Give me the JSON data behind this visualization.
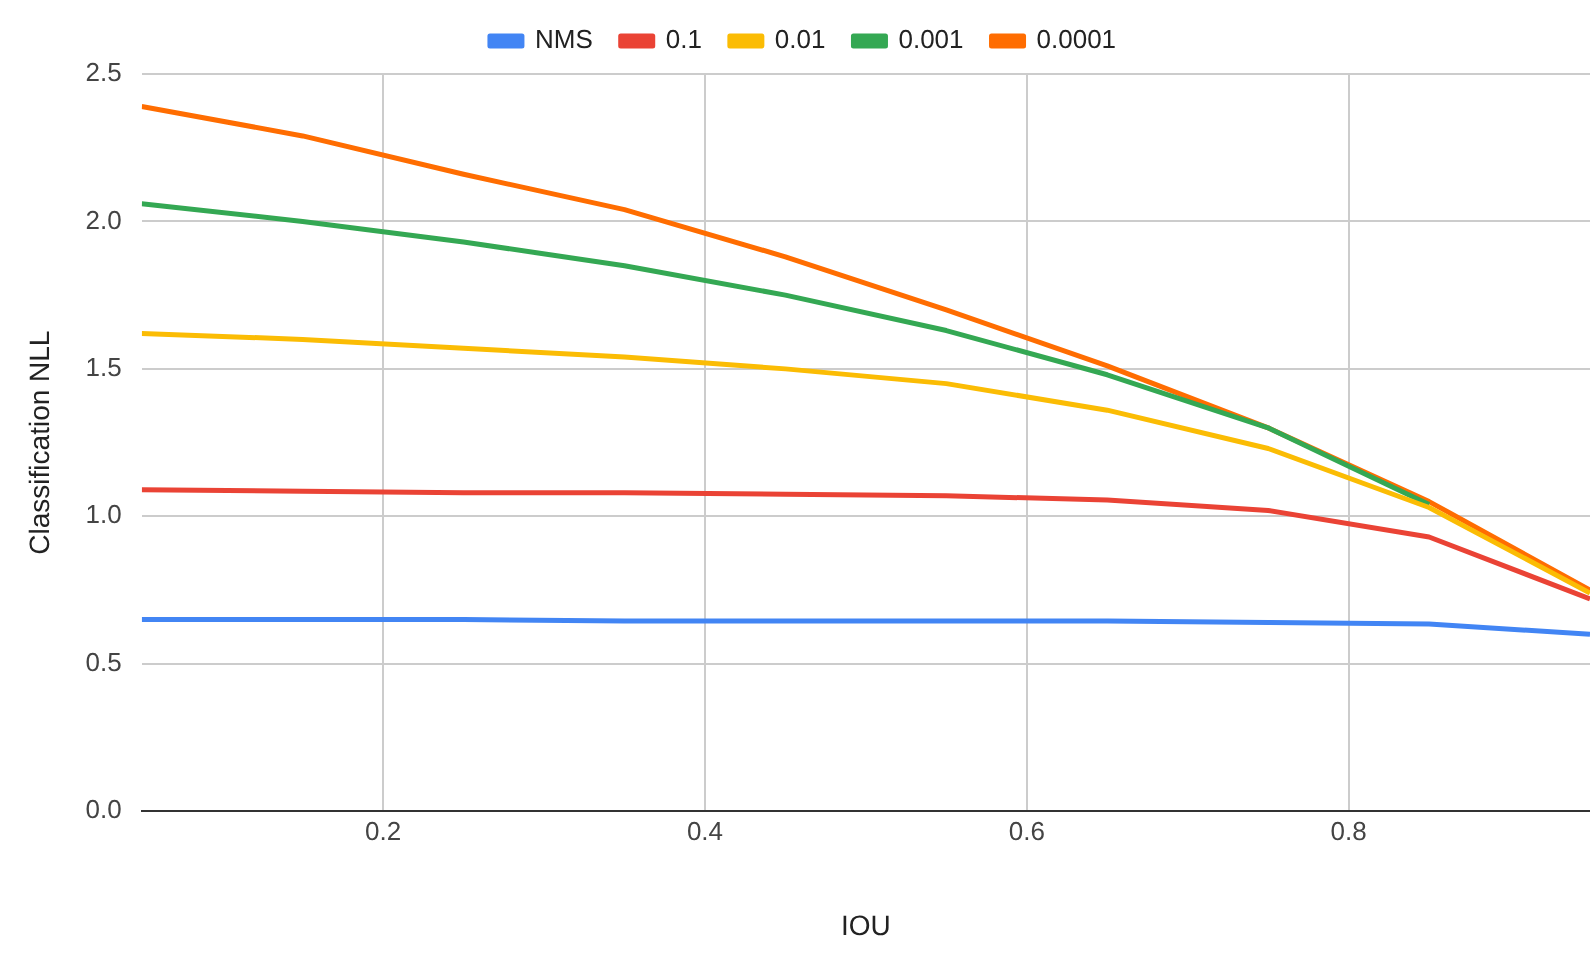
{
  "chart_data": {
    "type": "line",
    "xlabel": "IOU",
    "ylabel": "Classification NLL",
    "x": [
      0.05,
      0.15,
      0.25,
      0.35,
      0.45,
      0.55,
      0.65,
      0.75,
      0.85,
      0.95
    ],
    "series": [
      {
        "name": "NMS",
        "color": "#4285f4",
        "values": [
          0.65,
          0.65,
          0.65,
          0.645,
          0.645,
          0.645,
          0.645,
          0.64,
          0.635,
          0.6
        ]
      },
      {
        "name": "0.1",
        "color": "#ea4335",
        "values": [
          1.09,
          1.085,
          1.08,
          1.08,
          1.075,
          1.07,
          1.055,
          1.02,
          0.93,
          0.72
        ]
      },
      {
        "name": "0.01",
        "color": "#fbbc04",
        "values": [
          1.62,
          1.6,
          1.57,
          1.54,
          1.5,
          1.45,
          1.36,
          1.23,
          1.03,
          0.74
        ]
      },
      {
        "name": "0.001",
        "color": "#34a853",
        "values": [
          2.06,
          2.0,
          1.93,
          1.85,
          1.75,
          1.63,
          1.48,
          1.3,
          1.04,
          null
        ]
      },
      {
        "name": "0.0001",
        "color": "#ff6d01",
        "values": [
          2.39,
          2.29,
          2.16,
          2.04,
          1.88,
          1.7,
          1.51,
          1.3,
          1.05,
          0.75
        ]
      }
    ],
    "xlim": [
      0.05,
      0.95
    ],
    "xticks": [
      0.2,
      0.4,
      0.6,
      0.8
    ],
    "ylim": [
      0,
      2.5
    ],
    "yticks": [
      {
        "value": 0,
        "label": "0.0"
      },
      {
        "value": 0.5,
        "label": "0.5"
      },
      {
        "value": 1,
        "label": "1.0"
      },
      {
        "value": 1.5,
        "label": "1.5"
      },
      {
        "value": 2,
        "label": "2.0"
      },
      {
        "value": 2.5,
        "label": "2.5"
      }
    ],
    "grid": true,
    "legend": "top",
    "marker": "none",
    "line_style": "solid"
  }
}
